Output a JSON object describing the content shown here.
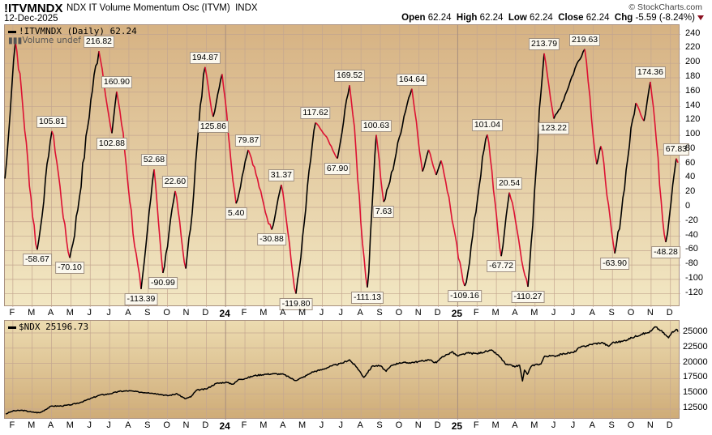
{
  "header": {
    "symbol": "!ITVMNDX",
    "description": "NDX IT Volume Momentum Osc (ITVM)",
    "exchange": "INDX",
    "date": "12-Dec-2025",
    "copyright": "© StockCharts.com",
    "open_label": "Open",
    "open": "62.24",
    "high_label": "High",
    "high": "62.24",
    "low_label": "Low",
    "low": "62.24",
    "close_label": "Close",
    "close": "62.24",
    "chg_label": "Chg",
    "chg": "-5.59 (-8.24%)"
  },
  "colors": {
    "up": "#000000",
    "down": "#dd1133",
    "grid": "#c4a690"
  },
  "chart_data": [
    {
      "type": "line",
      "title": "!ITVMNDX (Daily) 62.24",
      "volume_legend": "Volume undef",
      "ylim": [
        -135,
        255
      ],
      "yticks": [
        240,
        220,
        200,
        180,
        160,
        140,
        120,
        100,
        80,
        60,
        40,
        20,
        0,
        -20,
        -40,
        -60,
        -80,
        -100,
        -120
      ],
      "x_unit": "months since Jan 2023",
      "xlim": [
        0.59,
        35.51
      ],
      "month_labels": [
        "F",
        "M",
        "A",
        "M",
        "J",
        "J",
        "A",
        "S",
        "O",
        "N",
        "D",
        "24",
        "F",
        "M",
        "A",
        "M",
        "J",
        "J",
        "A",
        "S",
        "O",
        "N",
        "D",
        "25",
        "F",
        "M",
        "A",
        "M",
        "J",
        "J",
        "A",
        "S",
        "O",
        "N",
        "D"
      ],
      "points": [
        {
          "t": 0.59,
          "v": 40
        },
        {
          "t": 1.13,
          "v": 230
        },
        {
          "t": 2.26,
          "v": -58.67,
          "label": "-58.67"
        },
        {
          "t": 3.02,
          "v": 105.81,
          "label": "105.81"
        },
        {
          "t": 3.94,
          "v": -70.1,
          "label": "-70.10"
        },
        {
          "t": 5.45,
          "v": 216.82,
          "label": "216.82"
        },
        {
          "t": 6.12,
          "v": 102.88,
          "label": "102.88"
        },
        {
          "t": 6.37,
          "v": 160.9,
          "label": "160.90"
        },
        {
          "t": 7.63,
          "v": -113.39,
          "label": "-113.39"
        },
        {
          "t": 8.3,
          "v": 52.68,
          "label": "52.68"
        },
        {
          "t": 8.76,
          "v": -90.99,
          "label": "-90.99"
        },
        {
          "t": 9.39,
          "v": 22.6,
          "label": "22.60"
        },
        {
          "t": 9.94,
          "v": -85
        },
        {
          "t": 10.94,
          "v": 194.87,
          "label": "194.87"
        },
        {
          "t": 11.36,
          "v": 125.86,
          "label": "125.86"
        },
        {
          "t": 11.82,
          "v": 185
        },
        {
          "t": 12.54,
          "v": 5.4,
          "label": "5.40"
        },
        {
          "t": 13.17,
          "v": 79.87,
          "label": "79.87"
        },
        {
          "t": 14.38,
          "v": -30.88,
          "label": "-30.88"
        },
        {
          "t": 14.88,
          "v": 31.37,
          "label": "31.37"
        },
        {
          "t": 15.64,
          "v": -119.8,
          "label": "-119.80"
        },
        {
          "t": 16.65,
          "v": 117.62,
          "label": "117.62"
        },
        {
          "t": 17.15,
          "v": 100
        },
        {
          "t": 17.78,
          "v": 67.9,
          "label": "67.90"
        },
        {
          "t": 18.41,
          "v": 169.52,
          "label": "169.52"
        },
        {
          "t": 19.33,
          "v": -111.13,
          "label": "-111.13"
        },
        {
          "t": 19.79,
          "v": 100.63,
          "label": "100.63"
        },
        {
          "t": 20.17,
          "v": 7.63,
          "label": "7.63"
        },
        {
          "t": 21.63,
          "v": 164.64,
          "label": "164.64"
        },
        {
          "t": 22.18,
          "v": 50
        },
        {
          "t": 22.5,
          "v": 80
        },
        {
          "t": 22.89,
          "v": 45
        },
        {
          "t": 23.14,
          "v": 65
        },
        {
          "t": 24.36,
          "v": -109.16,
          "label": "-109.16"
        },
        {
          "t": 25.53,
          "v": 101.04,
          "label": "101.04"
        },
        {
          "t": 26.25,
          "v": -67.72,
          "label": "-67.72"
        },
        {
          "t": 26.67,
          "v": 20.54,
          "label": "20.54"
        },
        {
          "t": 27.63,
          "v": -110.27,
          "label": "-110.27"
        },
        {
          "t": 28.47,
          "v": 213.79,
          "label": "213.79"
        },
        {
          "t": 28.97,
          "v": 123.22,
          "label": "123.22"
        },
        {
          "t": 30.57,
          "v": 219.63,
          "label": "219.63"
        },
        {
          "t": 31.19,
          "v": 60
        },
        {
          "t": 31.4,
          "v": 85
        },
        {
          "t": 32.12,
          "v": -63.9,
          "label": "-63.90"
        },
        {
          "t": 33.21,
          "v": 145
        },
        {
          "t": 33.63,
          "v": 120
        },
        {
          "t": 33.96,
          "v": 174.36,
          "label": "174.36"
        },
        {
          "t": 34.76,
          "v": -48.28,
          "label": "-48.28"
        },
        {
          "t": 35.3,
          "v": 67.83,
          "label": "67.83"
        },
        {
          "t": 35.39,
          "v": 62.24
        }
      ]
    },
    {
      "type": "line",
      "title": "$NDX 25196.73",
      "ylim": [
        10500,
        27100
      ],
      "yticks": [
        25000,
        22500,
        20000,
        17500,
        15000,
        12500
      ],
      "ytick_labels": [
        "25000",
        "22500",
        "20000",
        "17500",
        "15000",
        "12500"
      ],
      "points": [
        [
          0.63,
          11700
        ],
        [
          1.0,
          12200
        ],
        [
          1.5,
          12300
        ],
        [
          2.0,
          12000
        ],
        [
          2.4,
          11900
        ],
        [
          3.0,
          13000
        ],
        [
          3.5,
          13000
        ],
        [
          4.0,
          13200
        ],
        [
          4.5,
          13600
        ],
        [
          5.0,
          14200
        ],
        [
          5.5,
          14800
        ],
        [
          6.0,
          15000
        ],
        [
          6.5,
          15400
        ],
        [
          7.0,
          15500
        ],
        [
          7.5,
          15300
        ],
        [
          8.0,
          15200
        ],
        [
          8.5,
          15000
        ],
        [
          9.0,
          14700
        ],
        [
          9.5,
          15000
        ],
        [
          9.9,
          14200
        ],
        [
          10.2,
          14500
        ],
        [
          10.5,
          15600
        ],
        [
          11.0,
          15800
        ],
        [
          11.5,
          16700
        ],
        [
          12.0,
          16900
        ],
        [
          12.4,
          16600
        ],
        [
          12.7,
          17400
        ],
        [
          13.0,
          17500
        ],
        [
          13.5,
          18000
        ],
        [
          14.0,
          18200
        ],
        [
          14.5,
          18300
        ],
        [
          15.0,
          18200
        ],
        [
          15.6,
          17200
        ],
        [
          16.0,
          17700
        ],
        [
          16.5,
          18600
        ],
        [
          17.0,
          19000
        ],
        [
          17.5,
          19600
        ],
        [
          18.0,
          20000
        ],
        [
          18.4,
          20600
        ],
        [
          18.8,
          19300
        ],
        [
          19.15,
          17700
        ],
        [
          19.6,
          19600
        ],
        [
          20.0,
          19600
        ],
        [
          20.3,
          18700
        ],
        [
          20.6,
          19700
        ],
        [
          21.0,
          20100
        ],
        [
          21.5,
          20100
        ],
        [
          22.0,
          20300
        ],
        [
          22.5,
          20600
        ],
        [
          22.9,
          20100
        ],
        [
          23.2,
          21100
        ],
        [
          23.5,
          21500
        ],
        [
          23.7,
          21900
        ],
        [
          24.0,
          21200
        ],
        [
          24.5,
          21700
        ],
        [
          25.0,
          21600
        ],
        [
          25.5,
          22000
        ],
        [
          25.8,
          22100
        ],
        [
          26.2,
          21000
        ],
        [
          26.5,
          19800
        ],
        [
          27.0,
          19500
        ],
        [
          27.2,
          19700
        ],
        [
          27.35,
          17100
        ],
        [
          27.45,
          18900
        ],
        [
          27.6,
          18200
        ],
        [
          27.8,
          19500
        ],
        [
          28.0,
          19800
        ],
        [
          28.3,
          19900
        ],
        [
          28.5,
          21200
        ],
        [
          29.0,
          21200
        ],
        [
          29.5,
          21600
        ],
        [
          30.0,
          21800
        ],
        [
          30.3,
          22600
        ],
        [
          31.0,
          23200
        ],
        [
          31.5,
          23400
        ],
        [
          31.8,
          22800
        ],
        [
          32.0,
          23400
        ],
        [
          32.5,
          23600
        ],
        [
          33.0,
          24200
        ],
        [
          33.5,
          24800
        ],
        [
          33.8,
          25000
        ],
        [
          34.0,
          25300
        ],
        [
          34.2,
          26000
        ],
        [
          34.5,
          25400
        ],
        [
          34.9,
          24200
        ],
        [
          35.1,
          25200
        ],
        [
          35.3,
          25600
        ],
        [
          35.39,
          25196.73
        ]
      ]
    }
  ]
}
